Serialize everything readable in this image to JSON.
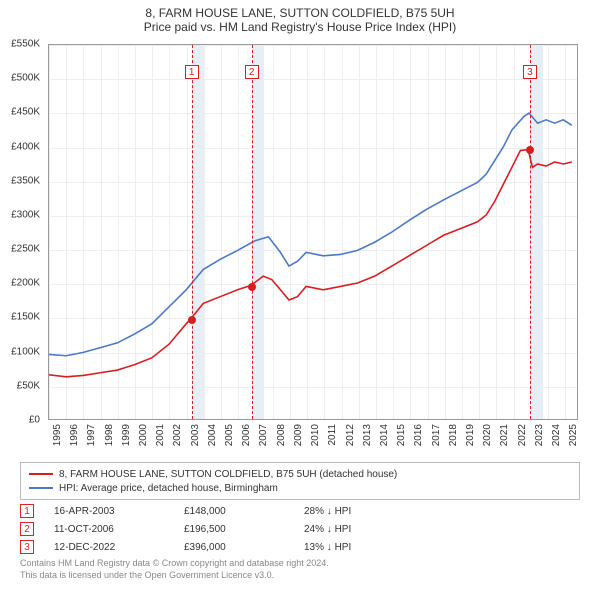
{
  "title_line1": "8, FARM HOUSE LANE, SUTTON COLDFIELD, B75 5UH",
  "title_line2": "Price paid vs. HM Land Registry's House Price Index (HPI)",
  "chart": {
    "type": "line",
    "background_color": "#ffffff",
    "grid_color": "#eeeeee",
    "border_color": "#999999",
    "x_range_years": [
      1995,
      2025.8
    ],
    "y_range": [
      0,
      550000
    ],
    "y_ticks": [
      0,
      50000,
      100000,
      150000,
      200000,
      250000,
      300000,
      350000,
      400000,
      450000,
      500000,
      550000
    ],
    "y_tick_labels": [
      "£0",
      "£50K",
      "£100K",
      "£150K",
      "£200K",
      "£250K",
      "£300K",
      "£350K",
      "£400K",
      "£450K",
      "£500K",
      "£550K"
    ],
    "x_ticks": [
      1995,
      1996,
      1997,
      1998,
      1999,
      2000,
      2001,
      2002,
      2003,
      2004,
      2005,
      2006,
      2007,
      2008,
      2009,
      2010,
      2011,
      2012,
      2013,
      2014,
      2015,
      2016,
      2017,
      2018,
      2019,
      2020,
      2021,
      2022,
      2023,
      2024,
      2025
    ],
    "tick_fontsize": 10,
    "shade_bands_color": "#e8eef6",
    "shade_bands": [
      [
        2003.29,
        2004.0
      ],
      [
        2006.78,
        2007.5
      ],
      [
        2022.95,
        2023.7
      ]
    ],
    "series": [
      {
        "id": "property",
        "label": "8, FARM HOUSE LANE, SUTTON COLDFIELD, B75 5UH (detached house)",
        "color": "#d81e1e",
        "line_width": 1.6,
        "points": [
          [
            1995.0,
            65000
          ],
          [
            1996.0,
            62000
          ],
          [
            1997.0,
            64000
          ],
          [
            1998.0,
            68000
          ],
          [
            1999.0,
            72000
          ],
          [
            2000.0,
            80000
          ],
          [
            2001.0,
            90000
          ],
          [
            2002.0,
            110000
          ],
          [
            2002.5,
            125000
          ],
          [
            2003.0,
            140000
          ],
          [
            2003.29,
            148000
          ],
          [
            2004.0,
            170000
          ],
          [
            2005.0,
            180000
          ],
          [
            2006.0,
            190000
          ],
          [
            2006.78,
            196500
          ],
          [
            2007.5,
            210000
          ],
          [
            2008.0,
            205000
          ],
          [
            2008.5,
            190000
          ],
          [
            2009.0,
            175000
          ],
          [
            2009.5,
            180000
          ],
          [
            2010.0,
            195000
          ],
          [
            2011.0,
            190000
          ],
          [
            2012.0,
            195000
          ],
          [
            2013.0,
            200000
          ],
          [
            2014.0,
            210000
          ],
          [
            2015.0,
            225000
          ],
          [
            2016.0,
            240000
          ],
          [
            2017.0,
            255000
          ],
          [
            2018.0,
            270000
          ],
          [
            2019.0,
            280000
          ],
          [
            2020.0,
            290000
          ],
          [
            2020.5,
            300000
          ],
          [
            2021.0,
            320000
          ],
          [
            2021.5,
            345000
          ],
          [
            2022.0,
            370000
          ],
          [
            2022.5,
            395000
          ],
          [
            2022.95,
            396000
          ],
          [
            2023.2,
            370000
          ],
          [
            2023.5,
            375000
          ],
          [
            2024.0,
            372000
          ],
          [
            2024.5,
            378000
          ],
          [
            2025.0,
            375000
          ],
          [
            2025.5,
            378000
          ]
        ]
      },
      {
        "id": "hpi",
        "label": "HPI: Average price, detached house, Birmingham",
        "color": "#4a7ac7",
        "line_width": 1.6,
        "points": [
          [
            1995.0,
            95000
          ],
          [
            1996.0,
            93000
          ],
          [
            1997.0,
            98000
          ],
          [
            1998.0,
            105000
          ],
          [
            1999.0,
            112000
          ],
          [
            2000.0,
            125000
          ],
          [
            2001.0,
            140000
          ],
          [
            2002.0,
            165000
          ],
          [
            2003.0,
            190000
          ],
          [
            2004.0,
            220000
          ],
          [
            2005.0,
            235000
          ],
          [
            2006.0,
            248000
          ],
          [
            2007.0,
            262000
          ],
          [
            2007.8,
            268000
          ],
          [
            2008.5,
            245000
          ],
          [
            2009.0,
            225000
          ],
          [
            2009.5,
            232000
          ],
          [
            2010.0,
            245000
          ],
          [
            2011.0,
            240000
          ],
          [
            2012.0,
            242000
          ],
          [
            2013.0,
            248000
          ],
          [
            2014.0,
            260000
          ],
          [
            2015.0,
            275000
          ],
          [
            2016.0,
            292000
          ],
          [
            2017.0,
            308000
          ],
          [
            2018.0,
            322000
          ],
          [
            2019.0,
            335000
          ],
          [
            2020.0,
            348000
          ],
          [
            2020.5,
            360000
          ],
          [
            2021.0,
            380000
          ],
          [
            2021.5,
            400000
          ],
          [
            2022.0,
            425000
          ],
          [
            2022.7,
            445000
          ],
          [
            2023.0,
            450000
          ],
          [
            2023.5,
            435000
          ],
          [
            2024.0,
            440000
          ],
          [
            2024.5,
            435000
          ],
          [
            2025.0,
            440000
          ],
          [
            2025.5,
            432000
          ]
        ]
      }
    ],
    "sale_markers": [
      {
        "idx": "1",
        "year": 2003.29,
        "price": 148000
      },
      {
        "idx": "2",
        "year": 2006.78,
        "price": 196500
      },
      {
        "idx": "3",
        "year": 2022.95,
        "price": 396000
      }
    ],
    "marker_line_color": "#d81e1e",
    "marker_box_border": "#d81e1e",
    "marker_box_top_y": 510000,
    "sale_dot_color": "#d81e1e"
  },
  "legend": {
    "border_color": "#bbbbbb",
    "fontsize": 10
  },
  "sales_table": [
    {
      "idx": "1",
      "date": "16-APR-2003",
      "price": "£148,000",
      "delta": "28% ↓ HPI"
    },
    {
      "idx": "2",
      "date": "11-OCT-2006",
      "price": "£196,500",
      "delta": "24% ↓ HPI"
    },
    {
      "idx": "3",
      "date": "12-DEC-2022",
      "price": "£396,000",
      "delta": "13% ↓ HPI"
    }
  ],
  "footer_line1": "Contains HM Land Registry data © Crown copyright and database right 2024.",
  "footer_line2": "This data is licensed under the Open Government Licence v3.0.",
  "footer_color": "#888888"
}
